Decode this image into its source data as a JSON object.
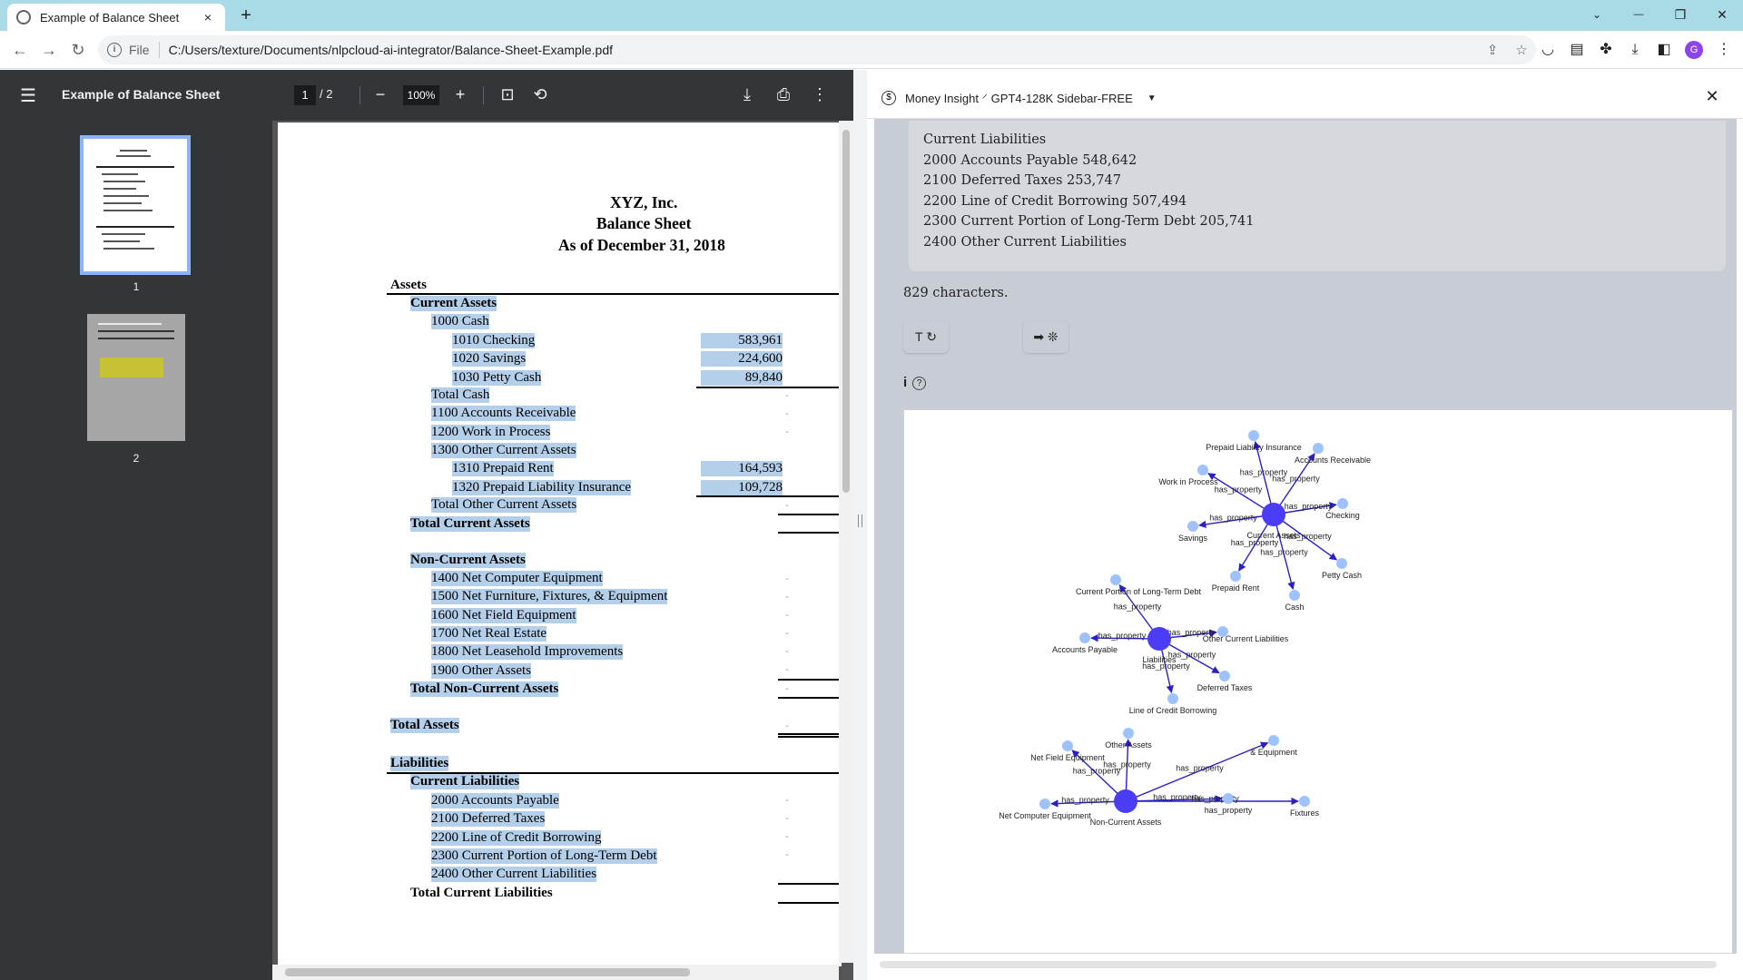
{
  "browser": {
    "tab_title": "Example of Balance Sheet",
    "tab_close": "×",
    "new_tab": "+",
    "scheme": "File",
    "url": "C:/Users/texture/Documents/nlpcloud-ai-integrator/Balance-Sheet-Example.pdf",
    "profile_initial": "G",
    "win_minimize": "—",
    "win_restore": "❐",
    "win_close": "✕",
    "tab_search": "⌄"
  },
  "pdf": {
    "title": "Example of Balance Sheet",
    "page_current": "1",
    "page_total": "/ 2",
    "zoom": "100%",
    "thumb1_label": "1",
    "thumb2_label": "2",
    "company": "XYZ, Inc.",
    "doc_title": "Balance Sheet",
    "as_of": "As of December 31, 2018",
    "assets": "Assets",
    "current_assets": "Current Assets",
    "cash": "1000 Cash",
    "checking": "1010 Checking",
    "checking_amt": "583,961",
    "savings": "1020 Savings",
    "savings_amt": "224,600",
    "petty": "1030 Petty Cash",
    "petty_amt": "89,840",
    "total_cash": "Total Cash",
    "ar": "1100 Accounts Receivable",
    "wip": "1200 Work in Process",
    "oca": "1300 Other Current Assets",
    "prepaid_rent": "1310 Prepaid Rent",
    "prepaid_rent_amt": "164,593",
    "prepaid_ins": "1320 Prepaid Liability Insurance",
    "prepaid_ins_amt": "109,728",
    "total_oca": "Total Other Current Assets",
    "total_ca": "Total Current Assets",
    "nca": "Non-Current Assets",
    "computer": "1400 Net Computer Equipment",
    "furniture": "1500 Net Furniture, Fixtures, & Equipment",
    "field": "1600 Net Field Equipment",
    "realestate": "1700 Net Real Estate",
    "leasehold": "1800 Net Leasehold Improvements",
    "other_assets": "1900 Other Assets",
    "total_nca": "Total Non-Current Assets",
    "total_assets": "Total Assets",
    "liabilities": "Liabilities",
    "current_liabilities": "Current Liabilities",
    "ap": "2000 Accounts Payable",
    "deferred": "2100 Deferred Taxes",
    "loc": "2200 Line of Credit Borrowing",
    "cpltd": "2300 Current Portion of Long-Term Debt",
    "ocl": "2400 Other Current Liabilities",
    "total_cl": "Total Current Liabilities",
    "dash": "-"
  },
  "sidebar": {
    "assistant": "Money Insight",
    "model": "GPT4-128K Sidebar-FREE",
    "answer_lines": [
      "Current Liabilities",
      "2000 Accounts Payable 548,642",
      "2100 Deferred Taxes 253,747",
      "2200 Line of Credit Borrowing 507,494",
      "2300 Current Portion of Long-Term Debt 205,741",
      "2400 Other Current Liabilities"
    ],
    "char_count": "829 characters.",
    "btn_regen": "T ↻",
    "btn_export": "➡ ❊",
    "info": "i",
    "help": "?"
  },
  "graph": {
    "edge_label": "has_property",
    "clusters": [
      {
        "center": "Current Assets",
        "children": [
          "Prepaid Liability Insurance",
          "Accounts Receivable",
          "Work in Process",
          "Checking",
          "Savings",
          "Petty Cash",
          "Prepaid Rent",
          "Cash"
        ]
      },
      {
        "center": "Liabilities",
        "children": [
          "Current Portion of Long-Term Debt",
          "Accounts Payable",
          "Other Current Liabilities",
          "Deferred Taxes",
          "Line of Credit Borrowing"
        ]
      },
      {
        "center": "Non-Current Assets",
        "children": [
          "Other Assets",
          "Net Field Equipment",
          "Net Computer Equipment",
          "has_property",
          "& Equipment",
          "Fixtures"
        ]
      }
    ],
    "colors": {
      "center": "#4b3cf5",
      "leaf": "#9dc2ff",
      "edge": "#2a1fc9"
    }
  }
}
